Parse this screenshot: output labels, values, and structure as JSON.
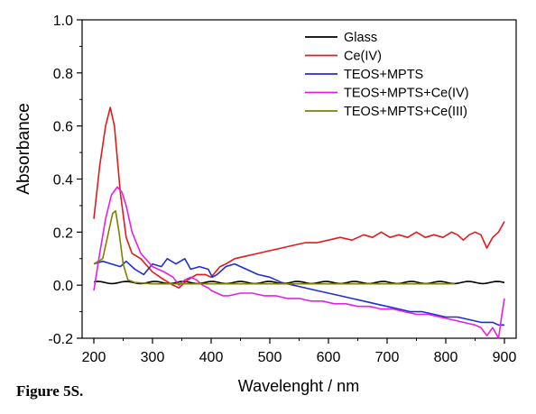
{
  "figure_caption": "Figure 5S.",
  "chart_data": {
    "type": "line",
    "xlabel": "Wavelenght / nm",
    "ylabel": "Absorbance",
    "xlim": [
      180,
      920
    ],
    "ylim": [
      -0.2,
      1.0
    ],
    "xticks": [
      "200",
      "300",
      "400",
      "500",
      "600",
      "700",
      "800",
      "900"
    ],
    "yticks": [
      "-0.2",
      "0.0",
      "0.2",
      "0.4",
      "0.6",
      "0.8",
      "1.0"
    ],
    "grid": false,
    "legend_position": "top-right",
    "series": [
      {
        "name": "Glass",
        "color": "#000000",
        "x": [
          200,
          900
        ],
        "y": [
          0.01,
          0.01
        ],
        "noise": 0.004
      },
      {
        "name": "Ce(IV)",
        "color": "#e31a1c",
        "x": [
          200,
          210,
          220,
          228,
          235,
          245,
          255,
          265,
          280,
          300,
          320,
          335,
          345,
          360,
          375,
          390,
          400,
          415,
          425,
          440,
          460,
          480,
          500,
          520,
          540,
          560,
          580,
          600,
          620,
          640,
          660,
          675,
          690,
          705,
          720,
          735,
          750,
          765,
          780,
          795,
          810,
          820,
          830,
          840,
          850,
          860,
          870,
          880,
          890,
          900
        ],
        "y": [
          0.25,
          0.45,
          0.6,
          0.67,
          0.6,
          0.35,
          0.18,
          0.12,
          0.1,
          0.05,
          0.02,
          0.0,
          -0.01,
          0.02,
          0.04,
          0.04,
          0.03,
          0.07,
          0.08,
          0.1,
          0.11,
          0.12,
          0.13,
          0.14,
          0.15,
          0.16,
          0.16,
          0.17,
          0.18,
          0.17,
          0.19,
          0.18,
          0.2,
          0.18,
          0.19,
          0.18,
          0.2,
          0.18,
          0.19,
          0.18,
          0.2,
          0.19,
          0.17,
          0.19,
          0.2,
          0.19,
          0.14,
          0.18,
          0.2,
          0.24
        ]
      },
      {
        "name": "TEOS+MPTS",
        "color": "#1f2fd0",
        "x": [
          200,
          215,
          230,
          245,
          255,
          270,
          285,
          300,
          315,
          325,
          340,
          355,
          365,
          380,
          395,
          402,
          410,
          425,
          440,
          460,
          480,
          500,
          520,
          540,
          560,
          580,
          600,
          620,
          640,
          660,
          680,
          700,
          720,
          740,
          760,
          780,
          800,
          820,
          840,
          860,
          880,
          890,
          900
        ],
        "y": [
          0.08,
          0.09,
          0.08,
          0.07,
          0.09,
          0.06,
          0.04,
          0.08,
          0.07,
          0.1,
          0.08,
          0.1,
          0.06,
          0.07,
          0.06,
          0.03,
          0.04,
          0.07,
          0.08,
          0.06,
          0.04,
          0.03,
          0.01,
          0.0,
          -0.01,
          -0.02,
          -0.03,
          -0.04,
          -0.05,
          -0.06,
          -0.07,
          -0.08,
          -0.09,
          -0.1,
          -0.1,
          -0.11,
          -0.12,
          -0.12,
          -0.13,
          -0.14,
          -0.14,
          -0.15,
          -0.15
        ]
      },
      {
        "name": "TEOS+MPTS+Ce(IV)",
        "color": "#e81ee8",
        "x": [
          200,
          210,
          220,
          230,
          240,
          248,
          255,
          265,
          280,
          300,
          320,
          335,
          345,
          355,
          365,
          375,
          385,
          395,
          400,
          410,
          420,
          430,
          450,
          470,
          490,
          510,
          530,
          550,
          570,
          590,
          610,
          630,
          650,
          670,
          690,
          710,
          730,
          750,
          770,
          790,
          810,
          830,
          850,
          860,
          870,
          880,
          890,
          895,
          900
        ],
        "y": [
          -0.02,
          0.12,
          0.25,
          0.34,
          0.37,
          0.35,
          0.3,
          0.2,
          0.12,
          0.07,
          0.05,
          0.03,
          0.0,
          0.02,
          0.03,
          0.02,
          0.0,
          -0.01,
          -0.02,
          -0.03,
          -0.04,
          -0.04,
          -0.03,
          -0.03,
          -0.04,
          -0.04,
          -0.05,
          -0.05,
          -0.06,
          -0.06,
          -0.07,
          -0.07,
          -0.08,
          -0.08,
          -0.09,
          -0.09,
          -0.1,
          -0.11,
          -0.11,
          -0.12,
          -0.13,
          -0.14,
          -0.15,
          -0.16,
          -0.19,
          -0.16,
          -0.2,
          -0.12,
          -0.05
        ]
      },
      {
        "name": "TEOS+MPTS+Ce(III)",
        "color": "#808000",
        "x": [
          200,
          215,
          225,
          232,
          237,
          243,
          250,
          258,
          270,
          300,
          350,
          400,
          450,
          500,
          550,
          600,
          650,
          700,
          750,
          800,
          815
        ],
        "y": [
          0.08,
          0.1,
          0.2,
          0.27,
          0.28,
          0.2,
          0.08,
          0.02,
          0.01,
          0.005,
          0.005,
          0.005,
          0.005,
          0.005,
          0.005,
          0.005,
          0.005,
          0.005,
          0.005,
          0.005,
          0.005
        ]
      }
    ]
  }
}
